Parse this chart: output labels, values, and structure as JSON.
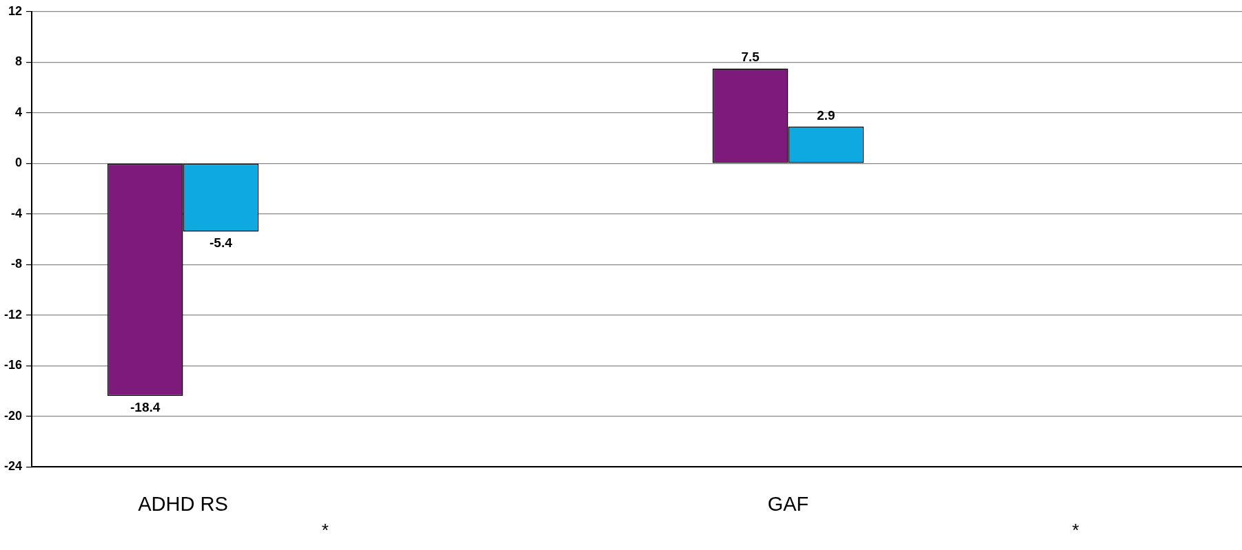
{
  "chart_data": {
    "type": "bar",
    "categories": [
      "ADHD RS",
      null,
      "GAF",
      null
    ],
    "series": [
      {
        "color": "#7e1a7c",
        "values": [
          -18.4,
          null,
          7.5,
          null
        ]
      },
      {
        "color": "#0ea9e1",
        "values": [
          -5.4,
          null,
          2.9,
          null
        ]
      }
    ],
    "ylim": [
      -24,
      12
    ],
    "yticks": [
      -24,
      -20,
      -16,
      -12,
      -8,
      -4,
      0,
      4,
      8,
      12
    ],
    "grid": "y",
    "legend": false,
    "data_labels": true,
    "annotations": [
      "*",
      "*"
    ]
  }
}
